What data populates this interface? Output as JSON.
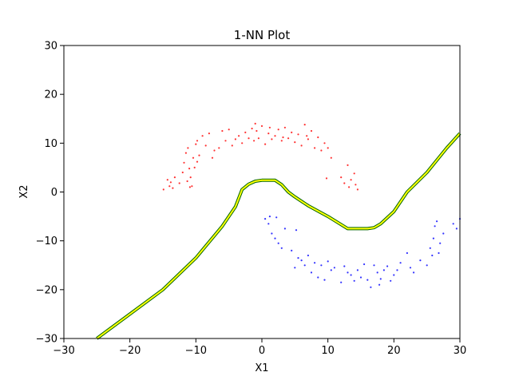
{
  "chart_data": {
    "type": "scatter",
    "title": "1-NN Plot",
    "xlabel": "X1",
    "ylabel": "X2",
    "xlim": [
      -30,
      30
    ],
    "ylim": [
      -30,
      30
    ],
    "xticks": [
      -30,
      -20,
      -10,
      0,
      10,
      20,
      30
    ],
    "yticks": [
      -30,
      -20,
      -10,
      0,
      10,
      20,
      30
    ],
    "xtick_labels": [
      "−30",
      "−20",
      "−10",
      "0",
      "10",
      "20",
      "30"
    ],
    "ytick_labels": [
      "−30",
      "−20",
      "−10",
      "0",
      "10",
      "20",
      "30"
    ],
    "grid": false,
    "series": [
      {
        "color": "#ff0000",
        "points": [
          [
            -14.9,
            0.5
          ],
          [
            -14.3,
            2.5
          ],
          [
            -14.0,
            1.2
          ],
          [
            -13.8,
            2.0
          ],
          [
            -13.5,
            0.8
          ],
          [
            -13.2,
            3.0
          ],
          [
            -12.5,
            1.8
          ],
          [
            -11.8,
            6.0
          ],
          [
            -11.5,
            8.0
          ],
          [
            -11.2,
            9.0
          ],
          [
            -11.0,
            4.8
          ],
          [
            -10.8,
            3.0
          ],
          [
            -10.6,
            1.2
          ],
          [
            -10.4,
            7.0
          ],
          [
            -10.2,
            5.0
          ],
          [
            -10.0,
            9.8
          ],
          [
            -9.8,
            10.5
          ],
          [
            -9.5,
            7.5
          ],
          [
            -9.0,
            11.5
          ],
          [
            -8.5,
            9.5
          ],
          [
            -8.0,
            12.0
          ],
          [
            -7.5,
            7.0
          ],
          [
            -7.2,
            8.5
          ],
          [
            -6.5,
            9.0
          ],
          [
            -6.0,
            12.5
          ],
          [
            -5.5,
            10.5
          ],
          [
            -5.0,
            12.8
          ],
          [
            -4.5,
            9.5
          ],
          [
            -4.0,
            10.8
          ],
          [
            -3.5,
            11.5
          ],
          [
            -3.0,
            10.0
          ],
          [
            -2.5,
            12.2
          ],
          [
            -2.0,
            11.0
          ],
          [
            -1.5,
            13.0
          ],
          [
            -1.2,
            10.5
          ],
          [
            -1.0,
            14.0
          ],
          [
            -0.8,
            12.5
          ],
          [
            -0.5,
            11.0
          ],
          [
            0.0,
            13.5
          ],
          [
            0.5,
            9.8
          ],
          [
            1.0,
            12.0
          ],
          [
            1.2,
            13.2
          ],
          [
            1.5,
            10.8
          ],
          [
            2.0,
            11.5
          ],
          [
            2.5,
            12.8
          ],
          [
            3.0,
            10.5
          ],
          [
            3.5,
            13.2
          ],
          [
            4.0,
            11.0
          ],
          [
            4.5,
            12.2
          ],
          [
            5.0,
            10.2
          ],
          [
            5.5,
            11.8
          ],
          [
            6.0,
            9.5
          ],
          [
            6.5,
            13.8
          ],
          [
            7.0,
            10.8
          ],
          [
            7.5,
            12.5
          ],
          [
            8.0,
            9.0
          ],
          [
            8.5,
            11.2
          ],
          [
            9.0,
            8.5
          ],
          [
            9.5,
            10.0
          ],
          [
            10.0,
            9.0
          ],
          [
            10.5,
            7.0
          ],
          [
            9.8,
            2.8
          ],
          [
            12.0,
            3.0
          ],
          [
            12.5,
            1.8
          ],
          [
            13.0,
            5.5
          ],
          [
            13.2,
            1.0
          ],
          [
            13.5,
            2.5
          ],
          [
            14.0,
            3.8
          ],
          [
            14.2,
            1.5
          ],
          [
            14.5,
            0.5
          ],
          [
            -12.0,
            4.0
          ],
          [
            -11.3,
            2.2
          ],
          [
            -10.9,
            1.0
          ],
          [
            -9.8,
            6.2
          ],
          [
            3.2,
            11.2
          ],
          [
            6.8,
            11.5
          ]
        ]
      },
      {
        "color": "#0000ff",
        "points": [
          [
            0.5,
            -5.5
          ],
          [
            1.0,
            -6.5
          ],
          [
            1.5,
            -8.5
          ],
          [
            2.0,
            -9.5
          ],
          [
            2.5,
            -10.5
          ],
          [
            3.0,
            -11.5
          ],
          [
            3.5,
            -7.5
          ],
          [
            2.2,
            -5.2
          ],
          [
            4.5,
            -12.0
          ],
          [
            5.0,
            -15.5
          ],
          [
            5.5,
            -13.5
          ],
          [
            6.0,
            -14.0
          ],
          [
            6.5,
            -15.0
          ],
          [
            7.0,
            -13.0
          ],
          [
            7.5,
            -16.5
          ],
          [
            8.0,
            -14.5
          ],
          [
            8.5,
            -17.5
          ],
          [
            9.0,
            -15.0
          ],
          [
            9.5,
            -18.0
          ],
          [
            10.0,
            -14.2
          ],
          [
            10.5,
            -16.0
          ],
          [
            11.0,
            -15.5
          ],
          [
            12.0,
            -18.5
          ],
          [
            12.5,
            -15.2
          ],
          [
            13.0,
            -16.5
          ],
          [
            13.5,
            -17.0
          ],
          [
            14.0,
            -18.2
          ],
          [
            14.5,
            -16.0
          ],
          [
            15.0,
            -17.5
          ],
          [
            15.5,
            -14.8
          ],
          [
            16.0,
            -18.0
          ],
          [
            16.5,
            -19.5
          ],
          [
            17.0,
            -15.0
          ],
          [
            17.5,
            -16.5
          ],
          [
            18.0,
            -17.8
          ],
          [
            18.5,
            -16.0
          ],
          [
            19.0,
            -15.2
          ],
          [
            19.5,
            -18.2
          ],
          [
            20.0,
            -17.0
          ],
          [
            20.5,
            -16.0
          ],
          [
            21.0,
            -14.5
          ],
          [
            22.0,
            -12.5
          ],
          [
            22.5,
            -15.5
          ],
          [
            23.0,
            -16.5
          ],
          [
            24.0,
            -14.0
          ],
          [
            25.0,
            -15.0
          ],
          [
            25.5,
            -11.5
          ],
          [
            26.0,
            -9.5
          ],
          [
            26.2,
            -7.0
          ],
          [
            26.5,
            -6.0
          ],
          [
            26.8,
            -12.5
          ],
          [
            27.0,
            -10.5
          ],
          [
            27.5,
            -8.5
          ],
          [
            29.0,
            -6.5
          ],
          [
            29.5,
            -7.5
          ],
          [
            30.0,
            -5.5
          ],
          [
            1.2,
            -5.0
          ],
          [
            5.2,
            -7.8
          ],
          [
            17.8,
            -19.0
          ],
          [
            25.8,
            -13.0
          ]
        ]
      }
    ],
    "boundary": {
      "colors": [
        "#ffff00",
        "#006400"
      ],
      "points": [
        [
          -25,
          -30
        ],
        [
          -20,
          -25
        ],
        [
          -15,
          -20
        ],
        [
          -10,
          -13.5
        ],
        [
          -6,
          -7
        ],
        [
          -4,
          -3
        ],
        [
          -3,
          0.5
        ],
        [
          -2,
          1.6
        ],
        [
          -1,
          2.2
        ],
        [
          0,
          2.4
        ],
        [
          2,
          2.4
        ],
        [
          3,
          1.5
        ],
        [
          4,
          0
        ],
        [
          5,
          -1
        ],
        [
          7,
          -2.8
        ],
        [
          10,
          -5
        ],
        [
          13,
          -7.5
        ],
        [
          16,
          -7.5
        ],
        [
          17,
          -7.3
        ],
        [
          18,
          -6.5
        ],
        [
          20,
          -4
        ],
        [
          22,
          0
        ],
        [
          25,
          4
        ],
        [
          28,
          9
        ],
        [
          30,
          12
        ]
      ]
    }
  }
}
